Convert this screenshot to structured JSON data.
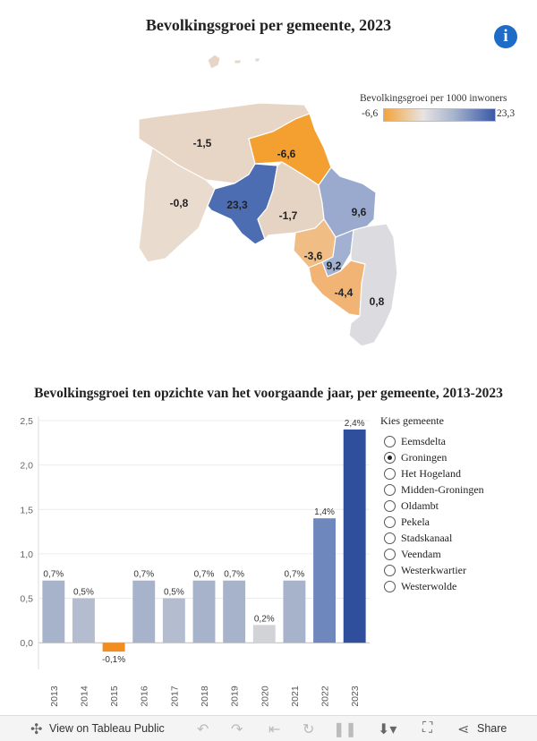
{
  "map": {
    "title": "Bevolkingsgroei per gemeente, 2023",
    "legend": {
      "title": "Bevolkingsgroei per 1000 inwoners",
      "min": "-6,6",
      "max": "23,3"
    },
    "regions": [
      {
        "label": "-1,5",
        "value": -1.5,
        "color": "#e7d5c5"
      },
      {
        "label": "-6,6",
        "value": -6.6,
        "color": "#f4a030"
      },
      {
        "label": "-0,8",
        "value": -0.8,
        "color": "#e9dccf"
      },
      {
        "label": "23,3",
        "value": 23.3,
        "color": "#4d6db3"
      },
      {
        "label": "-1,7",
        "value": -1.7,
        "color": "#e5d4c3"
      },
      {
        "label": "9,6",
        "value": 9.6,
        "color": "#9aaacf"
      },
      {
        "label": "-3,6",
        "value": -3.6,
        "color": "#f0bd85"
      },
      {
        "label": "9,2",
        "value": 9.2,
        "color": "#a2b0d1"
      },
      {
        "label": "-4,4",
        "value": -4.4,
        "color": "#f2b475"
      },
      {
        "label": "0,8",
        "value": 0.8,
        "color": "#dcdce0"
      }
    ]
  },
  "chart_data": {
    "type": "bar",
    "title": "Bevolkingsgroei ten opzichte van het voorgaande jaar, per gemeente, 2013-2023",
    "categories": [
      "2013",
      "2014",
      "2015",
      "2016",
      "2017",
      "2018",
      "2019",
      "2020",
      "2021",
      "2022",
      "2023"
    ],
    "values": [
      0.7,
      0.5,
      -0.1,
      0.7,
      0.5,
      0.7,
      0.7,
      0.2,
      0.7,
      1.4,
      2.4
    ],
    "data_labels": [
      "0,7%",
      "0,5%",
      "-0,1%",
      "0,7%",
      "0,5%",
      "0,7%",
      "0,7%",
      "0,2%",
      "0,7%",
      "1,4%",
      "2,4%"
    ],
    "bar_colors": [
      "#a7b3cb",
      "#b4bccf",
      "#f28e1f",
      "#a7b3cb",
      "#b4bccf",
      "#a7b3cb",
      "#a7b3cb",
      "#d2d3d6",
      "#a7b3cb",
      "#6e88bd",
      "#2f4f9d"
    ],
    "y_ticks": [
      "0,0",
      "0,5",
      "1,0",
      "1,5",
      "2,0",
      "2,5"
    ],
    "ylim": [
      -0.3,
      2.55
    ],
    "grid": true
  },
  "filter": {
    "title": "Kies gemeente",
    "options": [
      "Eemsdelta",
      "Groningen",
      "Het Hogeland",
      "Midden-Groningen",
      "Oldambt",
      "Pekela",
      "Stadskanaal",
      "Veendam",
      "Westerkwartier",
      "Westerwolde"
    ],
    "selected": "Groningen"
  },
  "toolbar": {
    "view_label": "View on Tableau Public",
    "share_label": "Share"
  }
}
